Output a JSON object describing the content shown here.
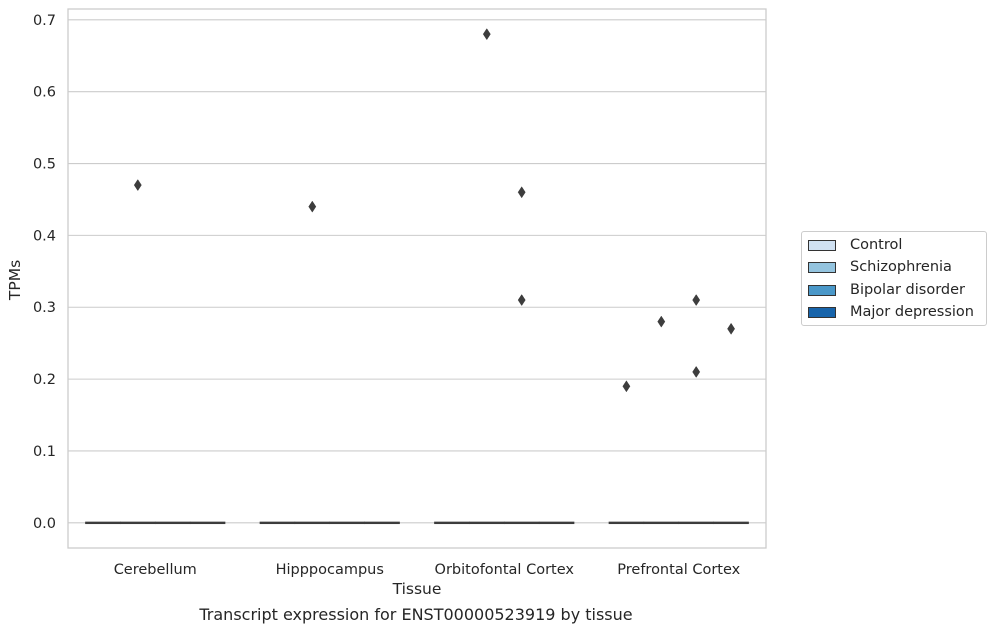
{
  "chart_data": {
    "type": "box",
    "xlabel": "Tissue",
    "ylabel": "TPMs",
    "caption": "Transcript expression for ENST00000523919 by tissue",
    "ylim": [
      -0.035,
      0.715
    ],
    "yticks": [
      0.0,
      0.1,
      0.2,
      0.3,
      0.4,
      0.5,
      0.6,
      0.7
    ],
    "ytick_labels": [
      "0.0",
      "0.1",
      "0.2",
      "0.3",
      "0.4",
      "0.5",
      "0.6",
      "0.7"
    ],
    "grid": "horizontal",
    "legend_position": "right",
    "categories": [
      "Cerebellum",
      "Hipppocampus",
      "Orbitofontal Cortex",
      "Prefrontal Cortex"
    ],
    "series": [
      {
        "name": "Control",
        "color": "#d0e1f2",
        "boxes": [
          {
            "median": 0,
            "q1": 0,
            "q3": 0
          },
          {
            "median": 0,
            "q1": 0,
            "q3": 0
          },
          {
            "median": 0,
            "q1": 0,
            "q3": 0
          },
          {
            "median": 0,
            "q1": 0,
            "q3": 0
          }
        ],
        "outliers": [
          [],
          [],
          [],
          [
            0.19
          ]
        ]
      },
      {
        "name": "Schizophrenia",
        "color": "#94c4df",
        "boxes": [
          {
            "median": 0,
            "q1": 0,
            "q3": 0
          },
          {
            "median": 0,
            "q1": 0,
            "q3": 0
          },
          {
            "median": 0,
            "q1": 0,
            "q3": 0
          },
          {
            "median": 0,
            "q1": 0,
            "q3": 0
          }
        ],
        "outliers": [
          [
            0.47
          ],
          [
            0.44
          ],
          [
            0.68
          ],
          [
            0.28
          ]
        ]
      },
      {
        "name": "Bipolar disorder",
        "color": "#4a98c9",
        "boxes": [
          {
            "median": 0,
            "q1": 0,
            "q3": 0
          },
          {
            "median": 0,
            "q1": 0,
            "q3": 0
          },
          {
            "median": 0,
            "q1": 0,
            "q3": 0
          },
          {
            "median": 0,
            "q1": 0,
            "q3": 0
          }
        ],
        "outliers": [
          [],
          [],
          [
            0.46,
            0.31
          ],
          [
            0.31,
            0.21
          ]
        ]
      },
      {
        "name": "Major depression",
        "color": "#1764ab",
        "boxes": [
          {
            "median": 0,
            "q1": 0,
            "q3": 0
          },
          {
            "median": 0,
            "q1": 0,
            "q3": 0
          },
          {
            "median": 0,
            "q1": 0,
            "q3": 0
          },
          {
            "median": 0,
            "q1": 0,
            "q3": 0
          }
        ],
        "outliers": [
          [],
          [],
          [],
          [
            0.27
          ]
        ]
      }
    ]
  }
}
